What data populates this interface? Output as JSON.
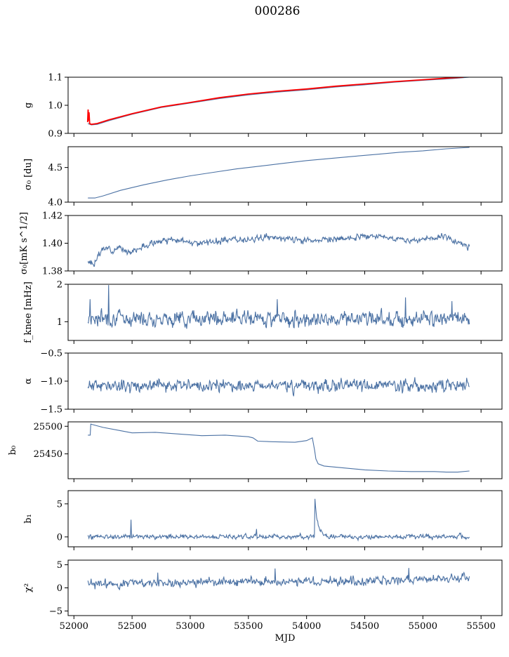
{
  "figure_title": "000286",
  "colors": {
    "line": "#4c72a4",
    "model": "#ff0000",
    "axis": "#000000"
  },
  "chart_data": [
    {
      "type": "line",
      "id": "g",
      "ylabel": "g",
      "ylim": [
        0.9,
        1.1
      ],
      "yticks": [
        0.9,
        1.0,
        1.1
      ],
      "ytick_labels": [
        "0.9",
        "1.0",
        "1.1"
      ],
      "series": [
        {
          "name": "g",
          "color": "#4c72a4",
          "x": [
            52120,
            52150,
            52200,
            52300,
            52500,
            52750,
            53000,
            53250,
            53500,
            53750,
            54000,
            54250,
            54500,
            54750,
            55000,
            55250,
            55400
          ],
          "y": [
            0.935,
            0.93,
            0.932,
            0.945,
            0.968,
            0.992,
            1.008,
            1.024,
            1.037,
            1.047,
            1.055,
            1.065,
            1.073,
            1.082,
            1.089,
            1.095,
            1.1
          ]
        },
        {
          "name": "model",
          "color": "#ff0000",
          "x": [
            52118,
            52122,
            52126,
            52130,
            52135,
            52150,
            52200,
            52300,
            52500,
            52750,
            53000,
            53250,
            53500,
            53750,
            54000,
            54250,
            54500,
            54750,
            55000,
            55250,
            55350
          ],
          "y": [
            0.94,
            0.985,
            0.945,
            0.975,
            0.935,
            0.932,
            0.935,
            0.948,
            0.97,
            0.994,
            1.01,
            1.027,
            1.04,
            1.05,
            1.058,
            1.068,
            1.076,
            1.084,
            1.091,
            1.098,
            1.1
          ]
        }
      ]
    },
    {
      "type": "line",
      "id": "sigma0",
      "ylabel": "σ₀ [du]",
      "ylim": [
        4.0,
        4.8
      ],
      "yticks": [
        4.0,
        4.5
      ],
      "ytick_labels": [
        "4.0",
        "4.5"
      ],
      "series": [
        {
          "name": "sigma0",
          "color": "#4c72a4",
          "x": [
            52120,
            52180,
            52250,
            52400,
            52600,
            52800,
            53000,
            53200,
            53400,
            53600,
            53800,
            54000,
            54200,
            54400,
            54600,
            54800,
            55000,
            55200,
            55400
          ],
          "y": [
            4.06,
            4.06,
            4.09,
            4.17,
            4.25,
            4.32,
            4.38,
            4.43,
            4.48,
            4.52,
            4.56,
            4.6,
            4.63,
            4.66,
            4.69,
            4.72,
            4.74,
            4.77,
            4.79
          ]
        }
      ]
    },
    {
      "type": "line",
      "id": "sigma0_mK",
      "ylabel": "σ₀[mK s^1/2]",
      "ylim": [
        1.38,
        1.42
      ],
      "yticks": [
        1.38,
        1.4,
        1.42
      ],
      "ytick_labels": [
        "1.38",
        "1.40",
        "1.42"
      ],
      "series": [
        {
          "name": "sigma0_mK",
          "color": "#4c72a4",
          "generator": "noise",
          "x_range": [
            52120,
            55400
          ],
          "anchors_x": [
            52120,
            52170,
            52250,
            52400,
            52500,
            52700,
            52900,
            53100,
            53400,
            53700,
            54000,
            54300,
            54600,
            54900,
            55200,
            55300,
            55400
          ],
          "anchors_y": [
            1.386,
            1.385,
            1.396,
            1.396,
            1.394,
            1.401,
            1.402,
            1.4,
            1.403,
            1.404,
            1.402,
            1.403,
            1.405,
            1.402,
            1.405,
            1.4,
            1.398
          ],
          "noise": 0.0018,
          "seed": 3
        }
      ]
    },
    {
      "type": "line",
      "id": "fknee",
      "ylabel": "f_knee [mHz]",
      "ylim": [
        0.5,
        2.0
      ],
      "yticks": [
        1,
        2
      ],
      "ytick_labels": [
        "1",
        "2"
      ],
      "series": [
        {
          "name": "fknee",
          "color": "#4c72a4",
          "generator": "noise",
          "x_range": [
            52120,
            55400
          ],
          "anchors_x": [
            52120,
            55400
          ],
          "anchors_y": [
            1.1,
            1.08
          ],
          "noise": 0.16,
          "seed": 7,
          "spikes": [
            [
              52300,
              1.98
            ],
            [
              52140,
              1.6
            ],
            [
              53750,
              1.6
            ],
            [
              54850,
              1.65
            ],
            [
              55250,
              1.55
            ]
          ]
        }
      ]
    },
    {
      "type": "line",
      "id": "alpha",
      "ylabel": "α",
      "ylim": [
        -1.5,
        -0.5
      ],
      "yticks": [
        -1.5,
        -1.0,
        -0.5
      ],
      "ytick_labels": [
        "−1.5",
        "−1.0",
        "−0.5"
      ],
      "series": [
        {
          "name": "alpha",
          "color": "#4c72a4",
          "generator": "noise",
          "x_range": [
            52120,
            55400
          ],
          "anchors_x": [
            52120,
            55400
          ],
          "anchors_y": [
            -1.08,
            -1.08
          ],
          "noise": 0.085,
          "seed": 11
        }
      ]
    },
    {
      "type": "line",
      "id": "b0",
      "ylabel": "b₀",
      "ylim": [
        25405,
        25508
      ],
      "yticks": [
        25450,
        25500
      ],
      "ytick_labels": [
        "25450",
        "25500"
      ],
      "series": [
        {
          "name": "b0",
          "color": "#4c72a4",
          "x": [
            52120,
            52140,
            52145,
            52160,
            52250,
            52400,
            52500,
            52700,
            52900,
            53100,
            53300,
            53500,
            53540,
            53580,
            53700,
            53900,
            54000,
            54050,
            54070,
            54080,
            54100,
            54150,
            54300,
            54500,
            54700,
            54900,
            55100,
            55200,
            55300,
            55400
          ],
          "y": [
            25484,
            25484,
            25504,
            25503,
            25498,
            25492,
            25488,
            25489,
            25486,
            25483,
            25484,
            25481,
            25479,
            25473,
            25472,
            25471,
            25474,
            25479,
            25456,
            25441,
            25432,
            25428,
            25425,
            25421,
            25419,
            25418,
            25418,
            25417,
            25417,
            25419
          ]
        }
      ]
    },
    {
      "type": "line",
      "id": "b1",
      "ylabel": "b₁",
      "ylim": [
        -1.5,
        7.0
      ],
      "yticks": [
        0,
        5
      ],
      "ytick_labels": [
        "0",
        "5"
      ],
      "series": [
        {
          "name": "b1",
          "color": "#4c72a4",
          "generator": "noise",
          "x_range": [
            52120,
            55400
          ],
          "anchors_x": [
            52120,
            55400
          ],
          "anchors_y": [
            0.05,
            0.05
          ],
          "noise": 0.28,
          "seed": 19,
          "spikes": [
            [
              52490,
              2.6
            ],
            [
              53570,
              1.2
            ]
          ],
          "decay": {
            "x0": 54070,
            "peak": 6.2,
            "tau": 25
          }
        }
      ]
    },
    {
      "type": "line",
      "id": "chi2",
      "ylabel": "χ²",
      "ylim": [
        -6.0,
        6.0
      ],
      "yticks": [
        -5,
        0,
        5
      ],
      "ytick_labels": [
        "−5",
        "0",
        "5"
      ],
      "xlabel": "MJD",
      "xlim": [
        51950,
        55680
      ],
      "xticks": [
        52000,
        52500,
        53000,
        53500,
        54000,
        54500,
        55000,
        55500
      ],
      "xtick_labels": [
        "52000",
        "52500",
        "53000",
        "53500",
        "54000",
        "54500",
        "55000",
        "55500"
      ],
      "series": [
        {
          "name": "chi2",
          "color": "#4c72a4",
          "generator": "noise",
          "x_range": [
            52120,
            55400
          ],
          "anchors_x": [
            52120,
            52500,
            53000,
            53500,
            54000,
            54500,
            55000,
            55400
          ],
          "anchors_y": [
            0.7,
            1.1,
            1.2,
            1.3,
            1.5,
            1.3,
            1.8,
            2.0
          ],
          "noise": 0.75,
          "seed": 23,
          "spikes": [
            [
              53730,
              4.2
            ],
            [
              54880,
              4.3
            ],
            [
              52720,
              3.3
            ]
          ]
        }
      ]
    }
  ],
  "shared_x": {
    "xlim": [
      51950,
      55680
    ],
    "xlabel": "MJD"
  }
}
